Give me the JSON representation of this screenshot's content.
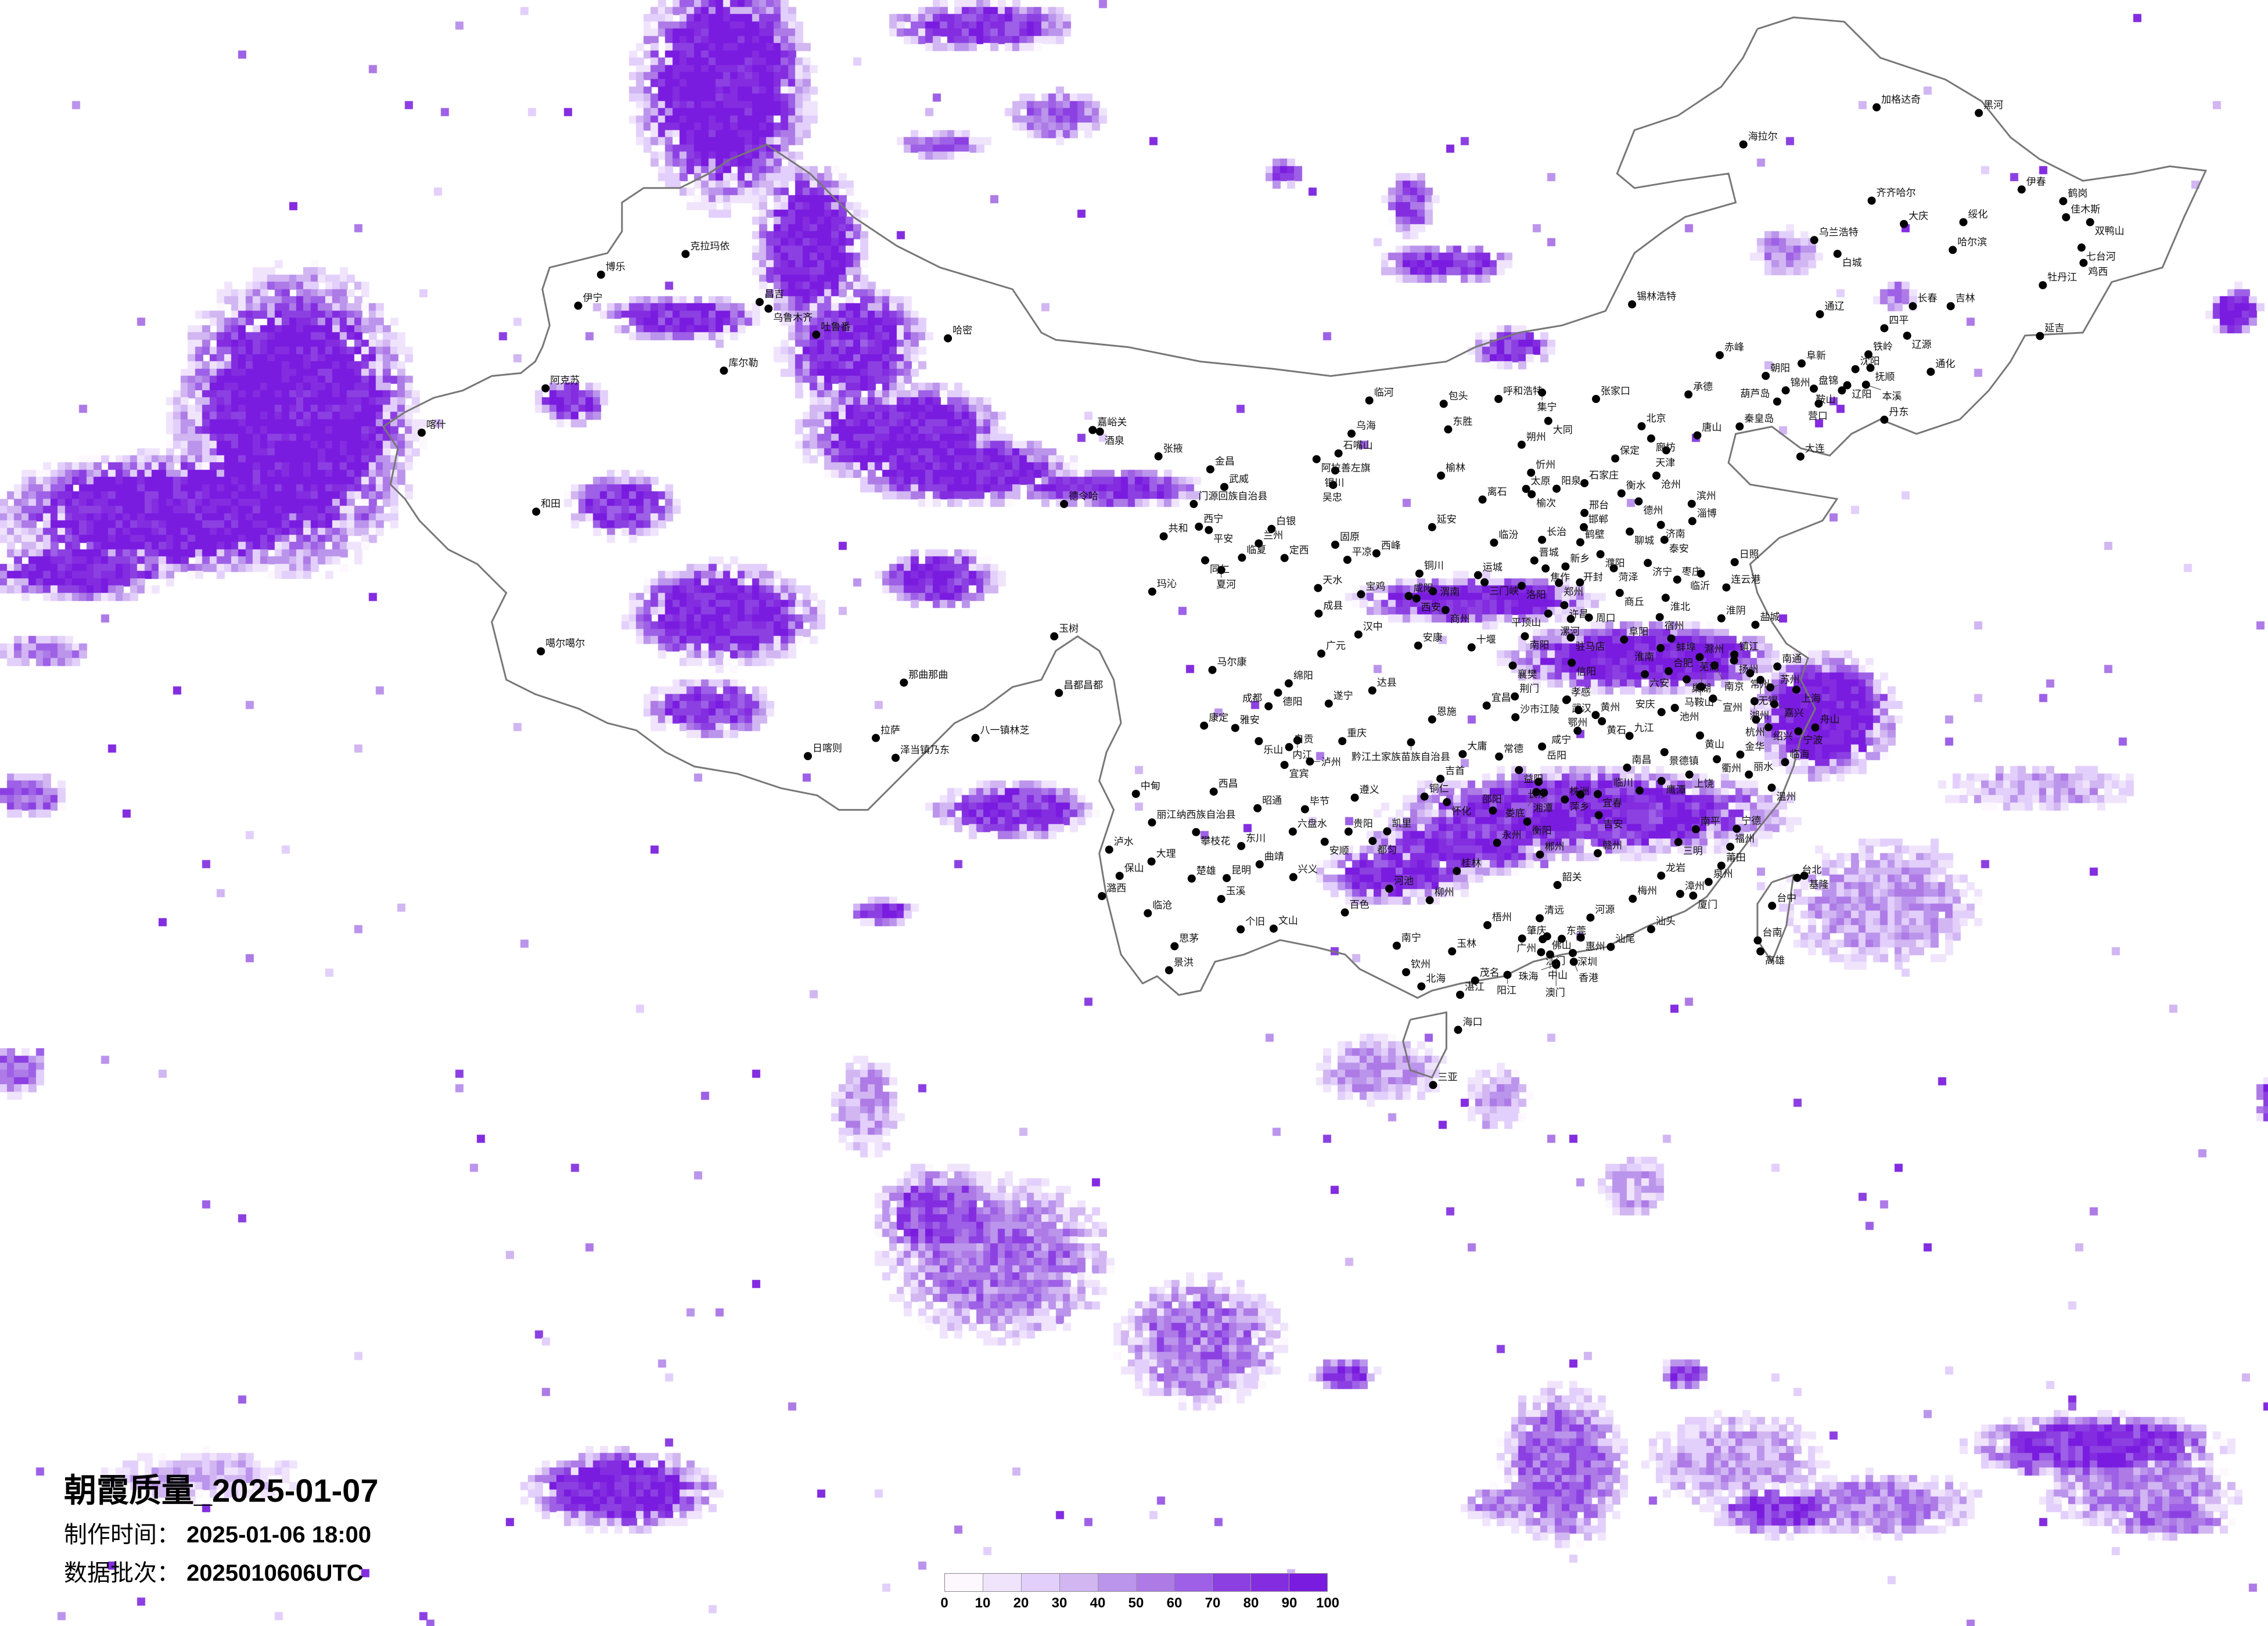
{
  "title": {
    "main": "朝霞质量_2025-01-07",
    "made_label": "制作时间：",
    "made_value": "2025-01-06 18:00",
    "batch_label": "数据批次：",
    "batch_value": "2025010606UTC"
  },
  "legend": {
    "ticks": [
      "0",
      "10",
      "20",
      "30",
      "40",
      "50",
      "60",
      "70",
      "80",
      "90",
      "100"
    ],
    "colors": [
      "#fdf8fe",
      "#f0e4fc",
      "#e3cffb",
      "#d1b6f2",
      "#bb94ec",
      "#ad7ae6",
      "#9d60e6",
      "#8c40e2",
      "#832ce0",
      "#7a1be0"
    ]
  },
  "map": {
    "boundary_color": "#777777",
    "city_marker_color": "#000000"
  },
  "cities": [
    "加格达奇",
    "黑河",
    "海拉尔",
    "伊春",
    "齐齐哈尔",
    "鹤岗",
    "大庆",
    "绥化",
    "佳木斯",
    "双鸭山",
    "乌兰浩特",
    "白城",
    "哈尔滨",
    "七台河",
    "鸡西",
    "牡丹江",
    "锡林浩特",
    "长春",
    "吉林",
    "通辽",
    "四平",
    "辽源",
    "延吉",
    "赤峰",
    "铁岭",
    "阜新",
    "沈阳",
    "抚顺",
    "朝阳",
    "通化",
    "锦州",
    "盘锦",
    "辽阳",
    "鞍山",
    "本溪",
    "葫芦岛",
    "营口",
    "秦皇岛",
    "丹东",
    "大连",
    "克拉玛依",
    "博乐",
    "伊宁",
    "昌吉",
    "乌鲁木齐",
    "吐鲁番",
    "哈密",
    "库尔勒",
    "阿克苏",
    "嘉峪关",
    "酒泉",
    "张掖",
    "金昌",
    "武威",
    "德令哈",
    "和田",
    "门源回族自治县",
    "西宁",
    "平安",
    "共和",
    "同仁",
    "临夏",
    "夏河",
    "玛沁",
    "玉树",
    "噶尔噶尔",
    "马尔康",
    "那曲那曲",
    "昌都昌都",
    "康定",
    "雅安",
    "拉萨",
    "八一镇林芝",
    "临河",
    "包头",
    "呼和浩特",
    "集宁",
    "张家口",
    "承德",
    "乌海",
    "东胜",
    "大同",
    "北京",
    "廊坊",
    "唐山",
    "石嘴山",
    "阿拉善左旗",
    "朔州",
    "天津",
    "保定",
    "银川",
    "吴忠",
    "榆林",
    "忻州",
    "沧州",
    "太原",
    "榆次",
    "阳泉",
    "石家庄",
    "离石",
    "衡水",
    "德州",
    "滨州",
    "淄博",
    "邢台",
    "邯郸",
    "聊城",
    "济南",
    "泰安",
    "白银",
    "兰州",
    "定西",
    "固原",
    "延安",
    "临汾",
    "长治",
    "鹤壁",
    "平凉",
    "西峰",
    "晋城",
    "焦作",
    "新乡",
    "濮阳",
    "菏泽",
    "济宁",
    "铜川",
    "运城",
    "三门峡",
    "洛阳",
    "郑州",
    "开封",
    "枣庄",
    "临沂",
    "天水",
    "宝鸡",
    "咸阳",
    "西安",
    "渭南",
    "商丘",
    "淮北",
    "商州",
    "许昌",
    "平顶山",
    "漯河",
    "周口",
    "宿州",
    "成县",
    "汉中",
    "安康",
    "十堰",
    "南阳",
    "驻马店",
    "阜阳",
    "蚌埠",
    "淮南",
    "广元",
    "襄樊",
    "信阳",
    "六安",
    "合肥",
    "滁州",
    "巢湖",
    "马鞍山",
    "绵阳",
    "德阳",
    "达县",
    "荆门",
    "孝感",
    "宜昌",
    "成都",
    "遂宁",
    "日照",
    "连云港",
    "淮阴",
    "盐城",
    "镇江",
    "扬州",
    "南京",
    "常州",
    "南通",
    "无锡",
    "苏州",
    "上海",
    "芜湖",
    "宣州",
    "湖州",
    "嘉兴",
    "池州",
    "安庆",
    "杭州",
    "绍兴",
    "宁波",
    "舟山",
    "黄山",
    "景德镇",
    "衢州",
    "金华",
    "临海",
    "丽水",
    "上饶",
    "鹰潭",
    "临川",
    "温州",
    "南昌",
    "九江",
    "恩施",
    "沙市江陵",
    "武汉",
    "鄂州",
    "黄州",
    "黄石",
    "咸宁",
    "大庸",
    "常德",
    "岳阳",
    "益阳",
    "吉首",
    "长沙",
    "湘潭",
    "株洲",
    "萍乡",
    "宜春",
    "娄底",
    "铜仁",
    "怀化",
    "邵阳",
    "吉安",
    "衡阳",
    "南平",
    "宁德",
    "三明",
    "福州",
    "永州",
    "郴州",
    "赣州",
    "莆田",
    "桂林",
    "龙岩",
    "泉州",
    "韶关",
    "台北",
    "基隆",
    "漳州",
    "厦门",
    "梅州",
    "乐山",
    "自贡",
    "内江",
    "重庆",
    "宜宾",
    "泸州",
    "黔江土家族苗族自治县",
    "中甸",
    "西昌",
    "昭通",
    "毕节",
    "遵义",
    "丽江纳西族自治县",
    "攀枝花",
    "六盘水",
    "贵阳",
    "凯里",
    "安顺",
    "都匀",
    "东川",
    "泸水",
    "大理",
    "曲靖",
    "保山",
    "楚雄",
    "昆明",
    "兴义",
    "河池",
    "潞西",
    "玉溪",
    "柳州",
    "临沧",
    "百色",
    "个旧",
    "文山",
    "思茅",
    "南宁",
    "景洪",
    "钦州",
    "北海",
    "梧州",
    "清远",
    "河源",
    "肇庆",
    "佛山",
    "广州",
    "东莞",
    "惠州",
    "汕尾",
    "汕头",
    "江门",
    "中山",
    "深圳",
    "香港",
    "澳门",
    "珠海",
    "玉林",
    "茂名",
    "阳江",
    "湛江",
    "海口",
    "三亚",
    "台中",
    "台南",
    "高雄",
    "日喀则",
    "泽当镇乃东",
    "喀什"
  ]
}
